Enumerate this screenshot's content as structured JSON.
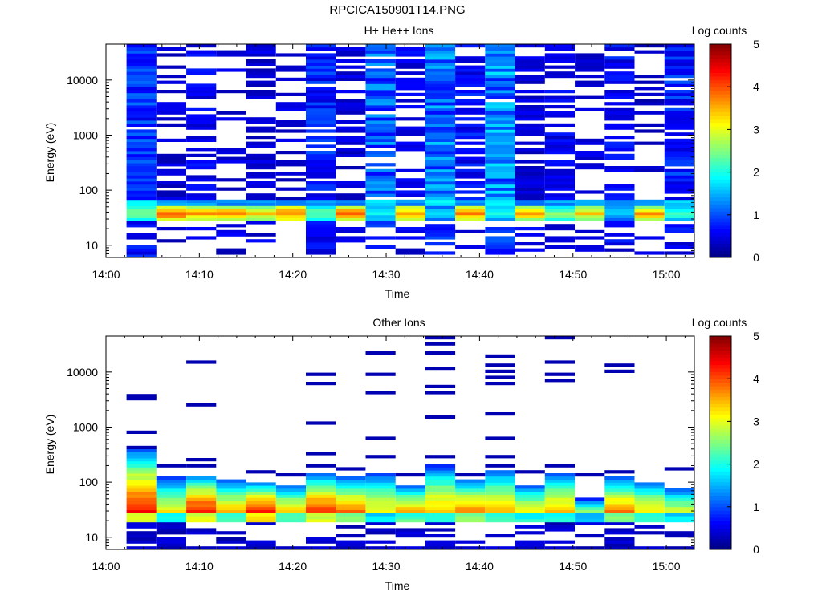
{
  "figure": {
    "title": "RPCICA150901T14.PNG"
  },
  "colormap": {
    "stops": [
      "#000080",
      "#0000ff",
      "#0080ff",
      "#00ffff",
      "#80ff80",
      "#ffff00",
      "#ff8000",
      "#ff0000",
      "#800000"
    ]
  },
  "chart_data": [
    {
      "type": "heatmap",
      "title": "H+ He++ Ions",
      "xlabel": "Time",
      "ylabel": "Energy (eV)",
      "colorbar_label": "Log counts",
      "colorbar_ticks": [
        "0",
        "1",
        "2",
        "3",
        "4",
        "5"
      ],
      "color_range": [
        0,
        5
      ],
      "x_ticks": [
        "14:00",
        "14:10",
        "14:20",
        "14:30",
        "14:40",
        "14:50",
        "15:00"
      ],
      "x_tick_minutes": [
        0,
        10,
        20,
        30,
        40,
        50,
        60
      ],
      "xlim_minutes": [
        0,
        63
      ],
      "y_scale": "log",
      "ylim": [
        6,
        45000
      ],
      "y_ticks": [
        "10",
        "100",
        "1000",
        "10000"
      ],
      "y_tick_values": [
        10,
        100,
        1000,
        10000
      ],
      "time_bins_minutes": [
        2.2,
        5.4,
        8.6,
        11.8,
        15.0,
        18.2,
        21.4,
        24.6,
        27.8,
        31.0,
        34.2,
        37.4,
        40.6,
        43.8,
        47.0,
        50.2,
        53.4,
        56.6,
        59.8
      ],
      "columns": [
        {
          "fill": 0.92,
          "level": 0.8,
          "peak": 2.6
        },
        {
          "fill": 0.45,
          "level": 0.4,
          "peak": 4.0
        },
        {
          "fill": 0.55,
          "level": 0.5,
          "peak": 3.6
        },
        {
          "fill": 0.35,
          "level": 0.4,
          "peak": 3.7
        },
        {
          "fill": 0.5,
          "level": 0.4,
          "peak": 3.3
        },
        {
          "fill": 0.3,
          "level": 0.4,
          "peak": 3.8
        },
        {
          "fill": 0.9,
          "level": 0.7,
          "peak": 2.4
        },
        {
          "fill": 0.45,
          "level": 0.4,
          "peak": 3.9
        },
        {
          "fill": 0.95,
          "level": 1.0,
          "peak": 1.9
        },
        {
          "fill": 0.65,
          "level": 0.5,
          "peak": 3.6
        },
        {
          "fill": 0.98,
          "level": 1.1,
          "peak": 1.6
        },
        {
          "fill": 0.75,
          "level": 0.6,
          "peak": 3.7
        },
        {
          "fill": 0.98,
          "level": 1.2,
          "peak": 2.0
        },
        {
          "fill": 0.6,
          "level": 0.4,
          "peak": 3.5
        },
        {
          "fill": 0.65,
          "level": 0.5,
          "peak": 2.6
        },
        {
          "fill": 0.45,
          "level": 0.4,
          "peak": 3.3
        },
        {
          "fill": 0.6,
          "level": 0.6,
          "peak": 1.7
        },
        {
          "fill": 0.25,
          "level": 0.3,
          "peak": 3.6
        },
        {
          "fill": 0.85,
          "level": 0.7,
          "peak": 2.2
        }
      ]
    },
    {
      "type": "heatmap",
      "title": "Other Ions",
      "xlabel": "Time",
      "ylabel": "Energy (eV)",
      "colorbar_label": "Log counts",
      "colorbar_ticks": [
        "0",
        "1",
        "2",
        "3",
        "4",
        "5"
      ],
      "color_range": [
        0,
        5
      ],
      "x_ticks": [
        "14:00",
        "14:10",
        "14:20",
        "14:30",
        "14:40",
        "14:50",
        "15:00"
      ],
      "x_tick_minutes": [
        0,
        10,
        20,
        30,
        40,
        50,
        60
      ],
      "xlim_minutes": [
        0,
        63
      ],
      "y_scale": "log",
      "ylim": [
        6,
        45000
      ],
      "y_ticks": [
        "10",
        "100",
        "1000",
        "10000"
      ],
      "y_tick_values": [
        10,
        100,
        1000,
        10000
      ],
      "time_bins_minutes": [
        2.2,
        5.4,
        8.6,
        11.8,
        15.0,
        18.2,
        21.4,
        24.6,
        27.8,
        31.0,
        34.2,
        37.4,
        40.6,
        43.8,
        47.0,
        50.2,
        53.4,
        56.6,
        59.8
      ],
      "columns": [
        {
          "peak": 4.4,
          "top": 380,
          "sparse": [
            420,
            800,
            3100,
            3900
          ]
        },
        {
          "peak": 3.4,
          "top": 120,
          "sparse": [
            190
          ]
        },
        {
          "peak": 4.6,
          "top": 130,
          "sparse": [
            200,
            250,
            2500,
            15000
          ]
        },
        {
          "peak": 3.7,
          "top": 110,
          "sparse": []
        },
        {
          "peak": 4.7,
          "top": 100,
          "sparse": [
            160
          ]
        },
        {
          "peak": 3.8,
          "top": 90,
          "sparse": [
            130
          ]
        },
        {
          "peak": 4.4,
          "top": 140,
          "sparse": [
            200,
            350,
            1200,
            6000,
            9000
          ]
        },
        {
          "peak": 4.1,
          "top": 120,
          "sparse": [
            170
          ]
        },
        {
          "peak": 3.3,
          "top": 150,
          "sparse": [
            300,
            600,
            4500,
            9000,
            23000
          ]
        },
        {
          "peak": 3.8,
          "top": 90,
          "sparse": [
            140
          ]
        },
        {
          "peak": 3.6,
          "top": 200,
          "sparse": [
            300,
            1500,
            4000,
            5500,
            12000,
            22000,
            32000,
            40000
          ]
        },
        {
          "peak": 4.1,
          "top": 110,
          "sparse": [
            140
          ]
        },
        {
          "peak": 3.6,
          "top": 170,
          "sparse": [
            200,
            280,
            650,
            1800,
            6500,
            8500,
            11000,
            14000,
            19000
          ]
        },
        {
          "peak": 3.5,
          "top": 90,
          "sparse": [
            150
          ]
        },
        {
          "peak": 3.6,
          "top": 150,
          "sparse": [
            190,
            7500,
            9000,
            15000,
            40000
          ]
        },
        {
          "peak": 3.2,
          "top": 50,
          "sparse": [
            140
          ]
        },
        {
          "peak": 4.0,
          "top": 120,
          "sparse": [
            160,
            10000,
            14000
          ]
        },
        {
          "peak": 3.6,
          "top": 100,
          "sparse": []
        },
        {
          "peak": 3.3,
          "top": 80,
          "sparse": [
            180
          ]
        }
      ]
    }
  ]
}
